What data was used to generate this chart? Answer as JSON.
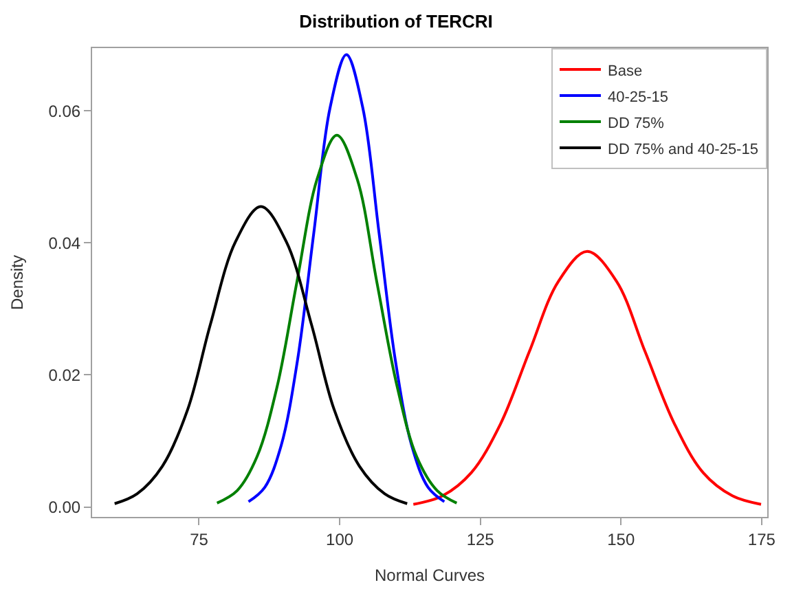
{
  "chart_data": {
    "type": "line",
    "title": "Distribution of TERCRI",
    "xlabel": "Normal Curves",
    "ylabel": "Density",
    "xlim": [
      56,
      176
    ],
    "ylim": [
      -0.0015,
      0.0695
    ],
    "xticks": [
      75,
      100,
      125,
      150,
      175
    ],
    "yticks": [
      {
        "value": 0,
        "label": "0.00"
      },
      {
        "value": 0.02,
        "label": "0.02"
      },
      {
        "value": 0.04,
        "label": "0.04"
      },
      {
        "value": 0.06,
        "label": "0.06"
      }
    ],
    "legend": "top right",
    "marker": "none",
    "line_style": "solid",
    "series": [
      {
        "name": "Base",
        "color": "#ff0000",
        "x": [
          113.1,
          118.3,
          123.4,
          128.6,
          133.7,
          138.9,
          144,
          149.2,
          154.3,
          159.5,
          164.6,
          169.8,
          174.9
        ],
        "values": [
          0.0004,
          0.0017,
          0.0052,
          0.0126,
          0.0235,
          0.0342,
          0.0387,
          0.0342,
          0.0235,
          0.0126,
          0.0052,
          0.0017,
          0.0004
        ]
      },
      {
        "name": "40-25-15",
        "color": "#0000ff",
        "x": [
          83.8,
          86.7,
          89.6,
          92.5,
          95.4,
          98.3,
          101.2,
          104.1,
          107,
          109.9,
          112.8,
          115.7,
          118.6
        ],
        "values": [
          0.0008,
          0.003,
          0.0093,
          0.0222,
          0.0415,
          0.0605,
          0.0685,
          0.0605,
          0.0415,
          0.0222,
          0.0093,
          0.003,
          0.0008
        ]
      },
      {
        "name": "DD 75%",
        "color": "#008000",
        "x": [
          78.2,
          81.8,
          85.3,
          88.9,
          92.4,
          96,
          99.5,
          103.1,
          106.6,
          110.2,
          113.7,
          117.3,
          120.8
        ],
        "values": [
          0.0006,
          0.0025,
          0.0076,
          0.0183,
          0.0341,
          0.0497,
          0.0563,
          0.0497,
          0.0341,
          0.0183,
          0.0076,
          0.0025,
          0.0006
        ]
      },
      {
        "name": "DD 75% and 40-25-15",
        "color": "#000000",
        "x": [
          60,
          64,
          68.5,
          73,
          77,
          81.5,
          86,
          90.5,
          95,
          99,
          103.5,
          108,
          112
        ],
        "values": [
          0.0005,
          0.002,
          0.0062,
          0.0148,
          0.0276,
          0.0402,
          0.0455,
          0.0402,
          0.0276,
          0.0148,
          0.0062,
          0.002,
          0.0005
        ]
      }
    ]
  }
}
